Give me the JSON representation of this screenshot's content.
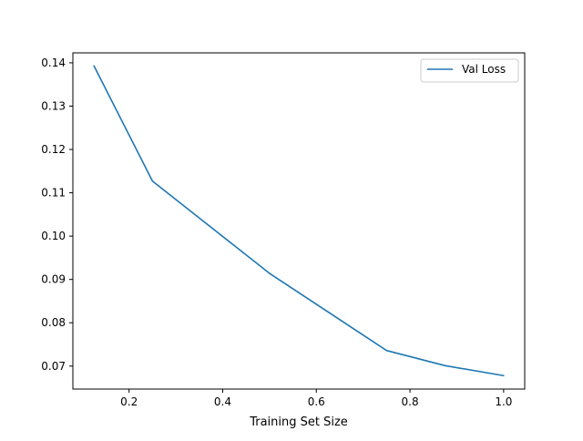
{
  "chart_data": {
    "type": "line",
    "title": "",
    "xlabel": "Training Set Size",
    "ylabel": "",
    "xlim": [
      0.08,
      1.045
    ],
    "ylim": [
      0.0647,
      0.1423
    ],
    "xticks": [
      0.2,
      0.4,
      0.6,
      0.8,
      1.0
    ],
    "xtick_labels": [
      "0.2",
      "0.4",
      "0.6",
      "0.8",
      "1.0"
    ],
    "yticks": [
      0.07,
      0.08,
      0.09,
      0.1,
      0.11,
      0.12,
      0.13,
      0.14
    ],
    "ytick_labels": [
      "0.07",
      "0.08",
      "0.09",
      "0.10",
      "0.11",
      "0.12",
      "0.13",
      "0.14"
    ],
    "grid": false,
    "legend": "top-right",
    "series": [
      {
        "name": "Val Loss",
        "color": "#1f77b4",
        "x": [
          0.125,
          0.25,
          0.5,
          0.75,
          0.875,
          1.0
        ],
        "y": [
          0.1393,
          0.1127,
          0.0914,
          0.0736,
          0.0701,
          0.0678
        ]
      }
    ]
  }
}
